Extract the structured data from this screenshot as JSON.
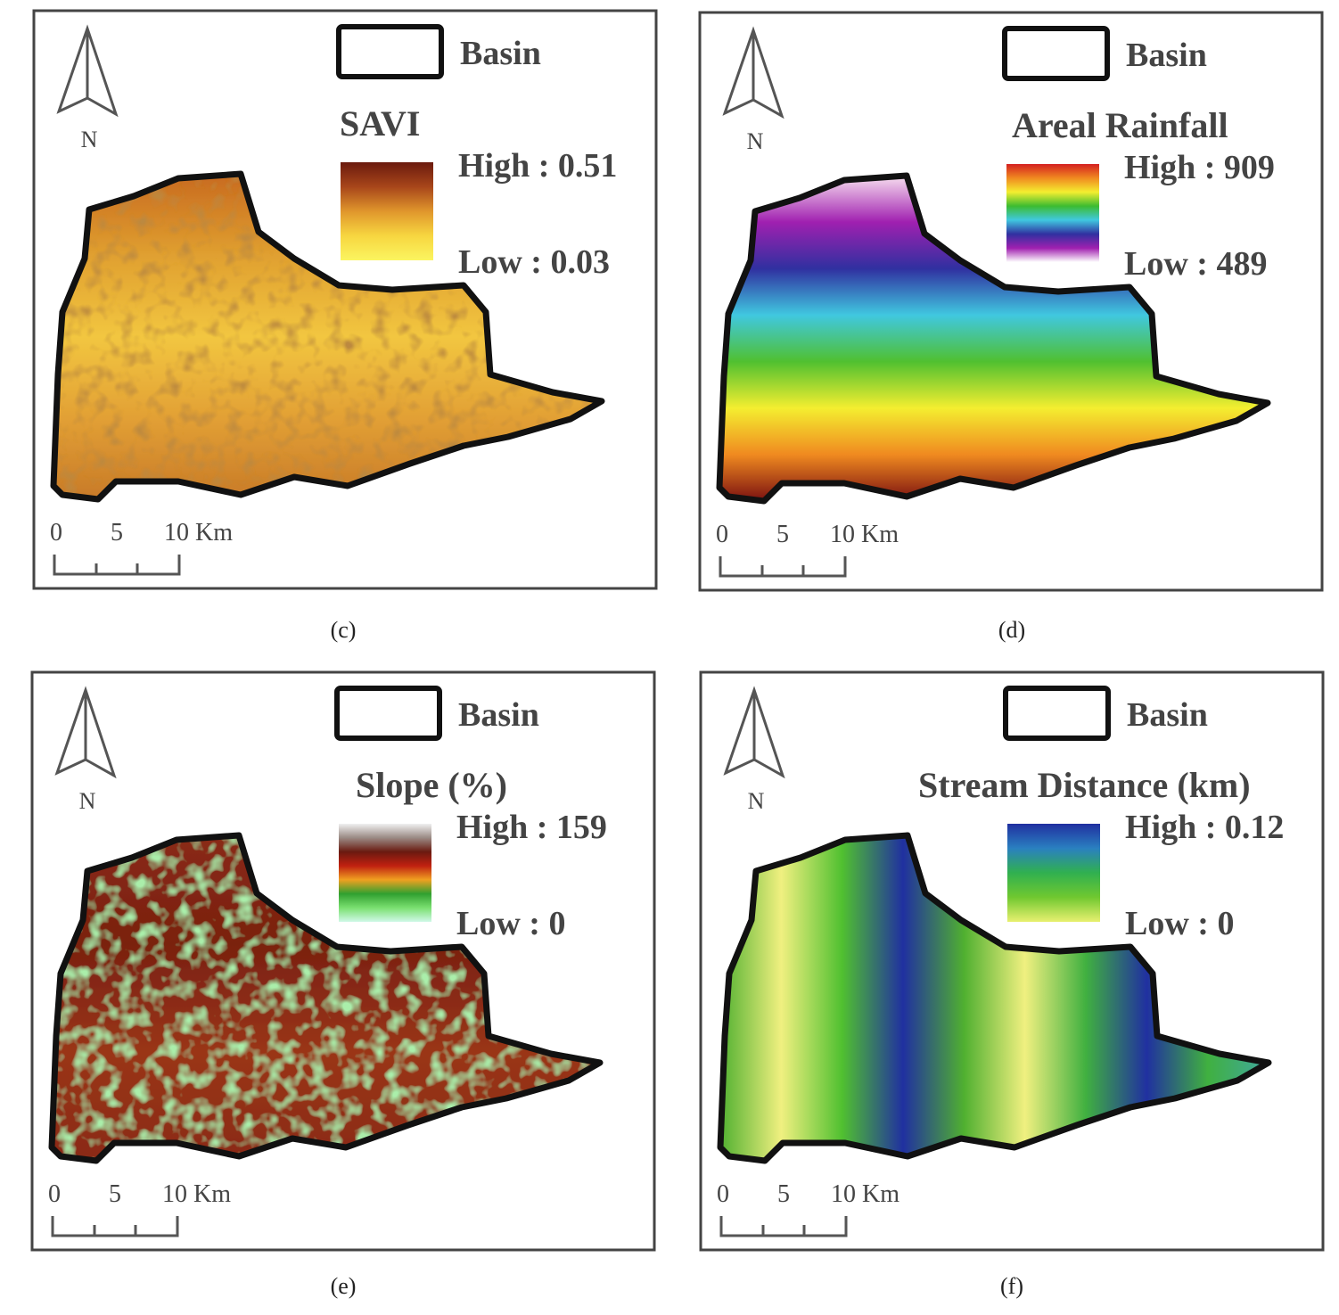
{
  "panels": [
    {
      "caption": "(c)",
      "north": "N",
      "legend": {
        "basin": "Basin",
        "title": "SAVI",
        "high": "High : 0.51",
        "low": "Low : 0.03",
        "ramp": [
          "#6b1a0e",
          "#a8461a",
          "#e0962c",
          "#f7d640",
          "#fbf560"
        ]
      },
      "scale": [
        "0",
        "5",
        "10 Km"
      ]
    },
    {
      "caption": "(d)",
      "north": "N",
      "legend": {
        "basin": "Basin",
        "title": "Areal Rainfall",
        "high": "High : 909",
        "low": "Low : 489",
        "ramp": [
          "#d42020",
          "#f08a20",
          "#f4ee30",
          "#3cbc30",
          "#40c8e0",
          "#3030a0",
          "#a020b0",
          "#ffffff"
        ]
      },
      "scale": [
        "0",
        "5",
        "10 Km"
      ]
    },
    {
      "caption": "(e)",
      "north": "N",
      "legend": {
        "basin": "Basin",
        "title": "Slope (%)",
        "high": "High : 159",
        "low": "Low : 0",
        "ramp": [
          "#f0f0f0",
          "#9a8a84",
          "#6a1a10",
          "#c02010",
          "#f0a020",
          "#30a030",
          "#7ae070",
          "#d0f8e8"
        ]
      },
      "scale": [
        "0",
        "5",
        "10 Km"
      ]
    },
    {
      "caption": "(f)",
      "north": "N",
      "legend": {
        "basin": "Basin",
        "title": "Stream Distance (km)",
        "high": "High : 0.12",
        "low": "Low : 0",
        "ramp": [
          "#2030a0",
          "#2a80c0",
          "#30b050",
          "#70c830",
          "#e8f070"
        ]
      },
      "scale": [
        "0",
        "5",
        "10 Km"
      ]
    }
  ]
}
